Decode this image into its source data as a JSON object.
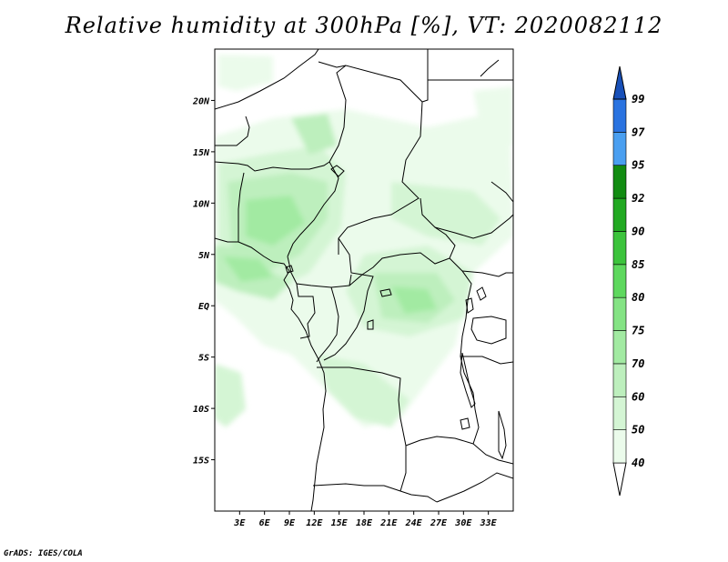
{
  "title": "Relative humidity at 300hPa [%], VT: 2020082112",
  "credit": "GrADS: IGES/COLA",
  "map": {
    "lon_range": [
      0,
      36
    ],
    "lat_range": [
      -20,
      25
    ],
    "lat_ticks": [
      {
        "value": 20,
        "label": "20N"
      },
      {
        "value": 15,
        "label": "15N"
      },
      {
        "value": 10,
        "label": "10N"
      },
      {
        "value": 5,
        "label": "5N"
      },
      {
        "value": 0,
        "label": "EQ"
      },
      {
        "value": -5,
        "label": "5S"
      },
      {
        "value": -10,
        "label": "10S"
      },
      {
        "value": -15,
        "label": "15S"
      }
    ],
    "lon_ticks": [
      {
        "value": 3,
        "label": "3E"
      },
      {
        "value": 6,
        "label": "6E"
      },
      {
        "value": 9,
        "label": "9E"
      },
      {
        "value": 12,
        "label": "12E"
      },
      {
        "value": 15,
        "label": "15E"
      },
      {
        "value": 18,
        "label": "18E"
      },
      {
        "value": 21,
        "label": "21E"
      },
      {
        "value": 24,
        "label": "24E"
      },
      {
        "value": 27,
        "label": "27E"
      },
      {
        "value": 30,
        "label": "30E"
      },
      {
        "value": 33,
        "label": "33E"
      }
    ]
  },
  "colorbar": {
    "levels": [
      "40",
      "50",
      "60",
      "70",
      "75",
      "80",
      "85",
      "90",
      "92",
      "95",
      "97",
      "99"
    ],
    "colors": [
      "#ffffff",
      "#ebfbeb",
      "#d4f5d4",
      "#bdefbd",
      "#a2eaa2",
      "#84e384",
      "#5ed85e",
      "#3cc33c",
      "#22a922",
      "#128c12",
      "#4a9ff0",
      "#2a73e0",
      "#1850b8"
    ]
  },
  "colors": {
    "frame": "#000000",
    "coast": "#000000"
  }
}
